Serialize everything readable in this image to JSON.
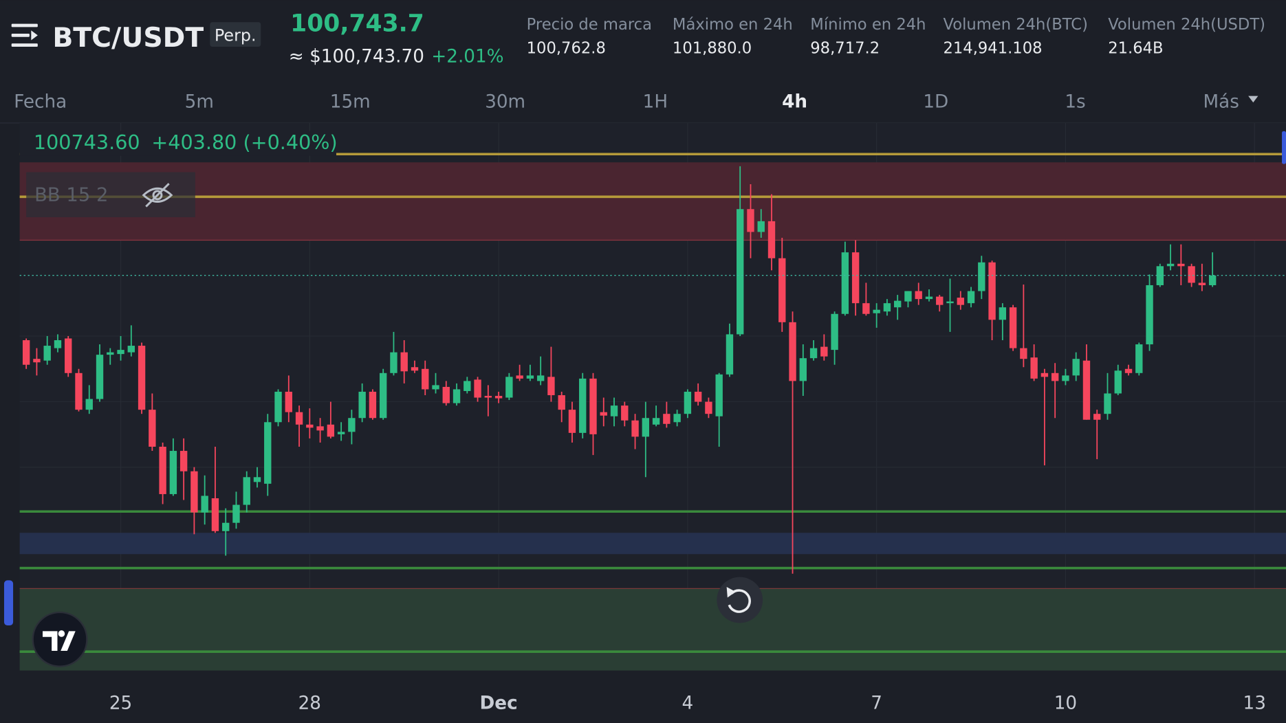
{
  "header": {
    "pair": "BTC/USDT",
    "contract": "Perp.",
    "last_price": "100,743.7",
    "usd_price": "≈ $100,743.70",
    "change": "+2.01%",
    "stats": [
      {
        "label": "Precio de marca",
        "value": "100,762.8"
      },
      {
        "label": "Máximo en 24h",
        "value": "101,880.0"
      },
      {
        "label": "Mínimo en 24h",
        "value": "98,717.2"
      },
      {
        "label": "Volumen 24h(BTC)",
        "value": "214,941.108"
      },
      {
        "label": "Volumen 24h(USDT)",
        "value": "21.64B"
      }
    ]
  },
  "timeframes": [
    "Fecha",
    "5m",
    "15m",
    "30m",
    "1H",
    "4h",
    "1D",
    "1s",
    "Más"
  ],
  "active_timeframe": "4h",
  "chart_data": {
    "type": "candlestick",
    "indicator": "BB 15 2",
    "up_color": "#2ebd85",
    "down_color": "#f6465d",
    "price_line": {
      "value": 100743.6,
      "label": "100743.60",
      "change": "+403.80 (+0.40%)",
      "color": "#3fb6a0"
    },
    "xlim": [
      -0.625,
      120
    ],
    "ylim": [
      89320,
      105150
    ],
    "xticks": [
      {
        "value": 9,
        "label": "25"
      },
      {
        "value": 27,
        "label": "28"
      },
      {
        "value": 45,
        "label": "Dec"
      },
      {
        "value": 63,
        "label": "4"
      },
      {
        "value": 81,
        "label": "7"
      },
      {
        "value": 99,
        "label": "10"
      },
      {
        "value": 117,
        "label": "13"
      }
    ],
    "open": [
      98870,
      98330,
      98280,
      98640,
      98920,
      97920,
      96860,
      97170,
      98450,
      98470,
      98520,
      98710,
      96860,
      95790,
      94420,
      95670,
      95080,
      93890,
      94300,
      93350,
      93590,
      94110,
      94770,
      94720,
      96500,
      97380,
      96790,
      96430,
      96380,
      96430,
      96150,
      96220,
      96620,
      97380,
      96620,
      97920,
      98520,
      98090,
      98040,
      97450,
      97520,
      97050,
      97400,
      97730,
      97260,
      97260,
      97210,
      97850,
      97760,
      97690,
      97810,
      97280,
      96860,
      96190,
      97760,
      96790,
      96670,
      96980,
      96550,
      96080,
      96430,
      96740,
      96500,
      96740,
      97380,
      97090,
      96670,
      97880,
      99040,
      102660,
      102000,
      102310,
      101240,
      99390,
      97690,
      98350,
      98680,
      98590,
      99630,
      101410,
      99940,
      99650,
      99700,
      99820,
      99990,
      100290,
      100060,
      100130,
      99940,
      100100,
      99940,
      100290,
      101120,
      99460,
      99820,
      98640,
      98370,
      97920,
      97920,
      97690,
      97850,
      98280,
      96740,
      96740,
      97330,
      98040,
      97920,
      98750,
      100460,
      101010,
      101080,
      101010,
      100530,
      100460
    ],
    "high": [
      98920,
      98640,
      98990,
      99040,
      98990,
      98040,
      97570,
      98750,
      98640,
      98990,
      99300,
      98800,
      97330,
      95910,
      96030,
      96030,
      95200,
      94960,
      95790,
      94010,
      94490,
      95080,
      95200,
      96740,
      97450,
      97850,
      96980,
      96900,
      96620,
      97090,
      96500,
      96860,
      97620,
      97450,
      98040,
      99110,
      98870,
      98280,
      98280,
      97920,
      97690,
      97620,
      97810,
      97810,
      97570,
      97380,
      97920,
      98160,
      98160,
      98400,
      98680,
      97380,
      97090,
      97920,
      97920,
      97210,
      97210,
      97090,
      96740,
      97090,
      96980,
      97090,
      96860,
      97450,
      97620,
      97210,
      97920,
      99350,
      103900,
      103380,
      102660,
      103090,
      101830,
      99700,
      98750,
      98870,
      99040,
      99700,
      101720,
      101760,
      100530,
      99940,
      100060,
      100180,
      100290,
      100530,
      100340,
      100180,
      100650,
      100290,
      100410,
      101310,
      101170,
      99940,
      99890,
      100480,
      98750,
      98040,
      98210,
      98040,
      98520,
      98750,
      96860,
      97920,
      98160,
      98160,
      98800,
      100770,
      101080,
      101640,
      101640,
      101080,
      101080,
      101410
    ],
    "low": [
      98040,
      97850,
      98160,
      98520,
      97810,
      96810,
      96740,
      97090,
      98160,
      98280,
      98400,
      96740,
      95670,
      94130,
      94370,
      94250,
      93260,
      93540,
      93300,
      92640,
      93420,
      93890,
      94610,
      94370,
      96380,
      96500,
      95790,
      96030,
      95910,
      96030,
      95960,
      95860,
      96500,
      96570,
      96570,
      97850,
      97620,
      97920,
      97280,
      97330,
      96980,
      96980,
      97330,
      97090,
      96670,
      97050,
      97140,
      97690,
      97690,
      97570,
      97090,
      96500,
      95910,
      96030,
      95550,
      96380,
      96380,
      96380,
      95720,
      94910,
      96380,
      96340,
      96380,
      96620,
      96980,
      96620,
      95790,
      97810,
      98990,
      101240,
      101830,
      100890,
      99110,
      92120,
      97260,
      98280,
      98280,
      98160,
      99580,
      99580,
      99580,
      99230,
      99580,
      99460,
      99820,
      99890,
      99990,
      99700,
      99110,
      99750,
      99820,
      100060,
      98870,
      98870,
      98560,
      98090,
      97690,
      95250,
      96620,
      97570,
      97690,
      96570,
      95430,
      96570,
      97280,
      97850,
      97850,
      98560,
      100410,
      100890,
      100460,
      100410,
      100290,
      100410
    ],
    "close": [
      98160,
      98230,
      98710,
      98870,
      97920,
      96860,
      97170,
      98450,
      98520,
      98590,
      98710,
      96860,
      95790,
      94420,
      95670,
      95080,
      93890,
      94370,
      93350,
      93590,
      94110,
      94910,
      94910,
      96500,
      97380,
      96790,
      96430,
      96340,
      96260,
      96080,
      96220,
      96620,
      97380,
      96620,
      97920,
      98520,
      97970,
      97990,
      97450,
      97570,
      97050,
      97450,
      97690,
      97210,
      97210,
      97190,
      97810,
      97760,
      97850,
      97850,
      97280,
      96860,
      96190,
      97760,
      96150,
      96690,
      96980,
      96550,
      96080,
      96620,
      96620,
      96450,
      96740,
      97380,
      97090,
      96740,
      97880,
      99040,
      102660,
      102000,
      102310,
      101240,
      99390,
      97690,
      98350,
      98640,
      98400,
      99630,
      101410,
      99940,
      99630,
      99750,
      99940,
      100010,
      100290,
      100060,
      100130,
      99890,
      99990,
      99890,
      100290,
      101120,
      99460,
      99820,
      98640,
      98330,
      97760,
      97810,
      97690,
      97850,
      98330,
      96570,
      96570,
      97330,
      97990,
      97920,
      98750,
      100460,
      101010,
      101080,
      101010,
      100530,
      100460,
      100740
    ]
  }
}
